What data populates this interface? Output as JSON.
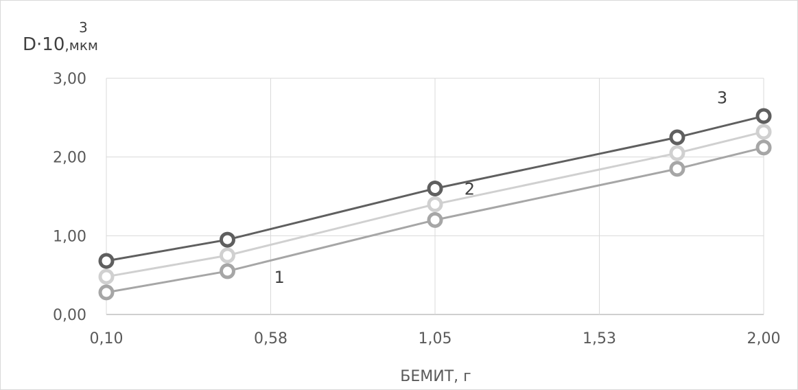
{
  "chart_data": {
    "type": "line",
    "ylabel_main": "D·10",
    "ylabel_exp": "3",
    "ylabel_unit": ",мкм",
    "xlabel": "БЕМИТ, г",
    "x_ticks": [
      "0,10",
      "0,58",
      "1,05",
      "1,53",
      "2,00"
    ],
    "y_ticks": [
      "0,00",
      "1,00",
      "2,00",
      "3,00"
    ],
    "xlim": [
      0.1,
      2.0
    ],
    "ylim": [
      0,
      3
    ],
    "grid": true,
    "series": [
      {
        "name": "1",
        "color": "#a6a6a6",
        "x": [
          0.1,
          0.45,
          1.05,
          1.75,
          2.0
        ],
        "y": [
          0.28,
          0.55,
          1.2,
          1.85,
          2.12
        ]
      },
      {
        "name": "2",
        "color": "#d0d0d0",
        "x": [
          0.1,
          0.45,
          1.05,
          1.75,
          2.0
        ],
        "y": [
          0.48,
          0.75,
          1.4,
          2.05,
          2.32
        ]
      },
      {
        "name": "3",
        "color": "#5f5f5f",
        "x": [
          0.1,
          0.45,
          1.05,
          1.75,
          2.0
        ],
        "y": [
          0.68,
          0.95,
          1.6,
          2.25,
          2.52
        ]
      }
    ]
  }
}
